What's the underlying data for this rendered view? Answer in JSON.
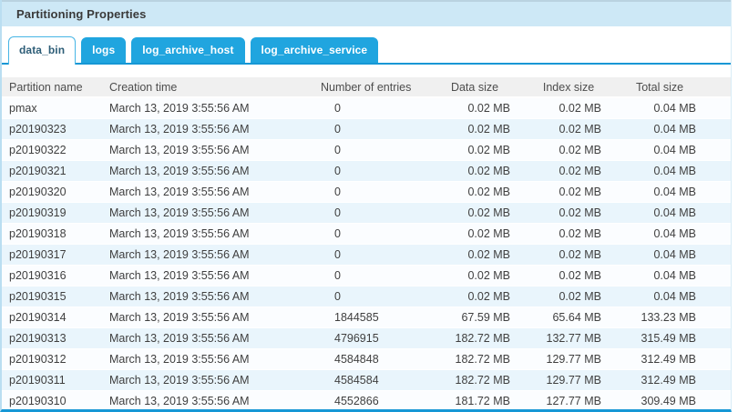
{
  "panel": {
    "title": "Partitioning Properties"
  },
  "tabs": [
    {
      "label": "data_bin",
      "active": true
    },
    {
      "label": "logs",
      "active": false
    },
    {
      "label": "log_archive_host",
      "active": false
    },
    {
      "label": "log_archive_service",
      "active": false
    }
  ],
  "table": {
    "columns": [
      "Partition name",
      "Creation time",
      "Number of entries",
      "Data size",
      "Index size",
      "Total size"
    ],
    "rows": [
      [
        "pmax",
        "March 13, 2019 3:55:56 AM",
        "0",
        "0.02 MB",
        "0.02 MB",
        "0.04 MB"
      ],
      [
        "p20190323",
        "March 13, 2019 3:55:56 AM",
        "0",
        "0.02 MB",
        "0.02 MB",
        "0.04 MB"
      ],
      [
        "p20190322",
        "March 13, 2019 3:55:56 AM",
        "0",
        "0.02 MB",
        "0.02 MB",
        "0.04 MB"
      ],
      [
        "p20190321",
        "March 13, 2019 3:55:56 AM",
        "0",
        "0.02 MB",
        "0.02 MB",
        "0.04 MB"
      ],
      [
        "p20190320",
        "March 13, 2019 3:55:56 AM",
        "0",
        "0.02 MB",
        "0.02 MB",
        "0.04 MB"
      ],
      [
        "p20190319",
        "March 13, 2019 3:55:56 AM",
        "0",
        "0.02 MB",
        "0.02 MB",
        "0.04 MB"
      ],
      [
        "p20190318",
        "March 13, 2019 3:55:56 AM",
        "0",
        "0.02 MB",
        "0.02 MB",
        "0.04 MB"
      ],
      [
        "p20190317",
        "March 13, 2019 3:55:56 AM",
        "0",
        "0.02 MB",
        "0.02 MB",
        "0.04 MB"
      ],
      [
        "p20190316",
        "March 13, 2019 3:55:56 AM",
        "0",
        "0.02 MB",
        "0.02 MB",
        "0.04 MB"
      ],
      [
        "p20190315",
        "March 13, 2019 3:55:56 AM",
        "0",
        "0.02 MB",
        "0.02 MB",
        "0.04 MB"
      ],
      [
        "p20190314",
        "March 13, 2019 3:55:56 AM",
        "1844585",
        "67.59 MB",
        "65.64 MB",
        "133.23 MB"
      ],
      [
        "p20190313",
        "March 13, 2019 3:55:56 AM",
        "4796915",
        "182.72 MB",
        "132.77 MB",
        "315.49 MB"
      ],
      [
        "p20190312",
        "March 13, 2019 3:55:56 AM",
        "4584848",
        "182.72 MB",
        "129.77 MB",
        "312.49 MB"
      ],
      [
        "p20190311",
        "March 13, 2019 3:55:56 AM",
        "4584584",
        "182.72 MB",
        "129.77 MB",
        "312.49 MB"
      ],
      [
        "p20190310",
        "March 13, 2019 3:55:56 AM",
        "4552866",
        "181.72 MB",
        "127.77 MB",
        "309.49 MB"
      ]
    ]
  },
  "colors": {
    "titlebar_bg": "#cde8f6",
    "tab_blue": "#20a5df",
    "tab_active_border": "#47b5e5",
    "tab_active_text": "#2d5d77",
    "accent_underline": "#1697d5",
    "panel_left_border": "#badef1",
    "panel_bottom_border": "#1697d5",
    "table_header_bg": "#f0f0f0",
    "row_stripe": "#e9f5fc",
    "cell_text": "#3f3f3f"
  }
}
